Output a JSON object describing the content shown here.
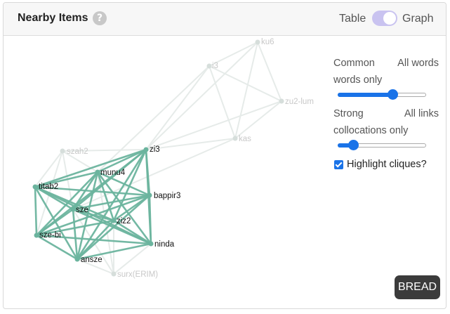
{
  "header": {
    "title": "Nearby Items",
    "help_icon": "question-circle-icon",
    "toggle_left": "Table",
    "toggle_right": "Graph",
    "toggle_state": "Graph"
  },
  "controls": {
    "slider1": {
      "left_label": "Common words only",
      "right_label": "All words",
      "value": 0.62
    },
    "slider2": {
      "left_label": "Strong collocations only",
      "right_label": "All links",
      "value": 0.18
    },
    "checkbox": {
      "label": "Highlight cliques?",
      "checked": true
    }
  },
  "colors": {
    "clique": "#6bb49e",
    "faded": "#e6ebe9",
    "accent": "#1a73e8"
  },
  "graph": {
    "nodes": [
      {
        "id": "ku6",
        "label": "ku6",
        "highlight": false
      },
      {
        "id": "i3",
        "label": "i3",
        "highlight": false
      },
      {
        "id": "zu2-lum",
        "label": "zu2-lum",
        "highlight": false
      },
      {
        "id": "kas",
        "label": "kas",
        "highlight": false
      },
      {
        "id": "szah2",
        "label": "szah2",
        "highlight": false
      },
      {
        "id": "zi3",
        "label": "zi3",
        "highlight": true
      },
      {
        "id": "munu4",
        "label": "munu4",
        "highlight": true
      },
      {
        "id": "titab2",
        "label": "titab2",
        "highlight": true
      },
      {
        "id": "bappir3",
        "label": "bappir3",
        "highlight": true
      },
      {
        "id": "sze",
        "label": "sze",
        "highlight": true
      },
      {
        "id": "ziz2",
        "label": "ziz2",
        "highlight": true
      },
      {
        "id": "sze-bi",
        "label": "sze-bi",
        "highlight": true
      },
      {
        "id": "ninda",
        "label": "ninda",
        "highlight": true
      },
      {
        "id": "ansze",
        "label": "ansze",
        "highlight": true
      },
      {
        "id": "surx(ERIM)",
        "label": "surx(ERIM)",
        "highlight": false
      }
    ]
  },
  "bread_button": "BREAD"
}
